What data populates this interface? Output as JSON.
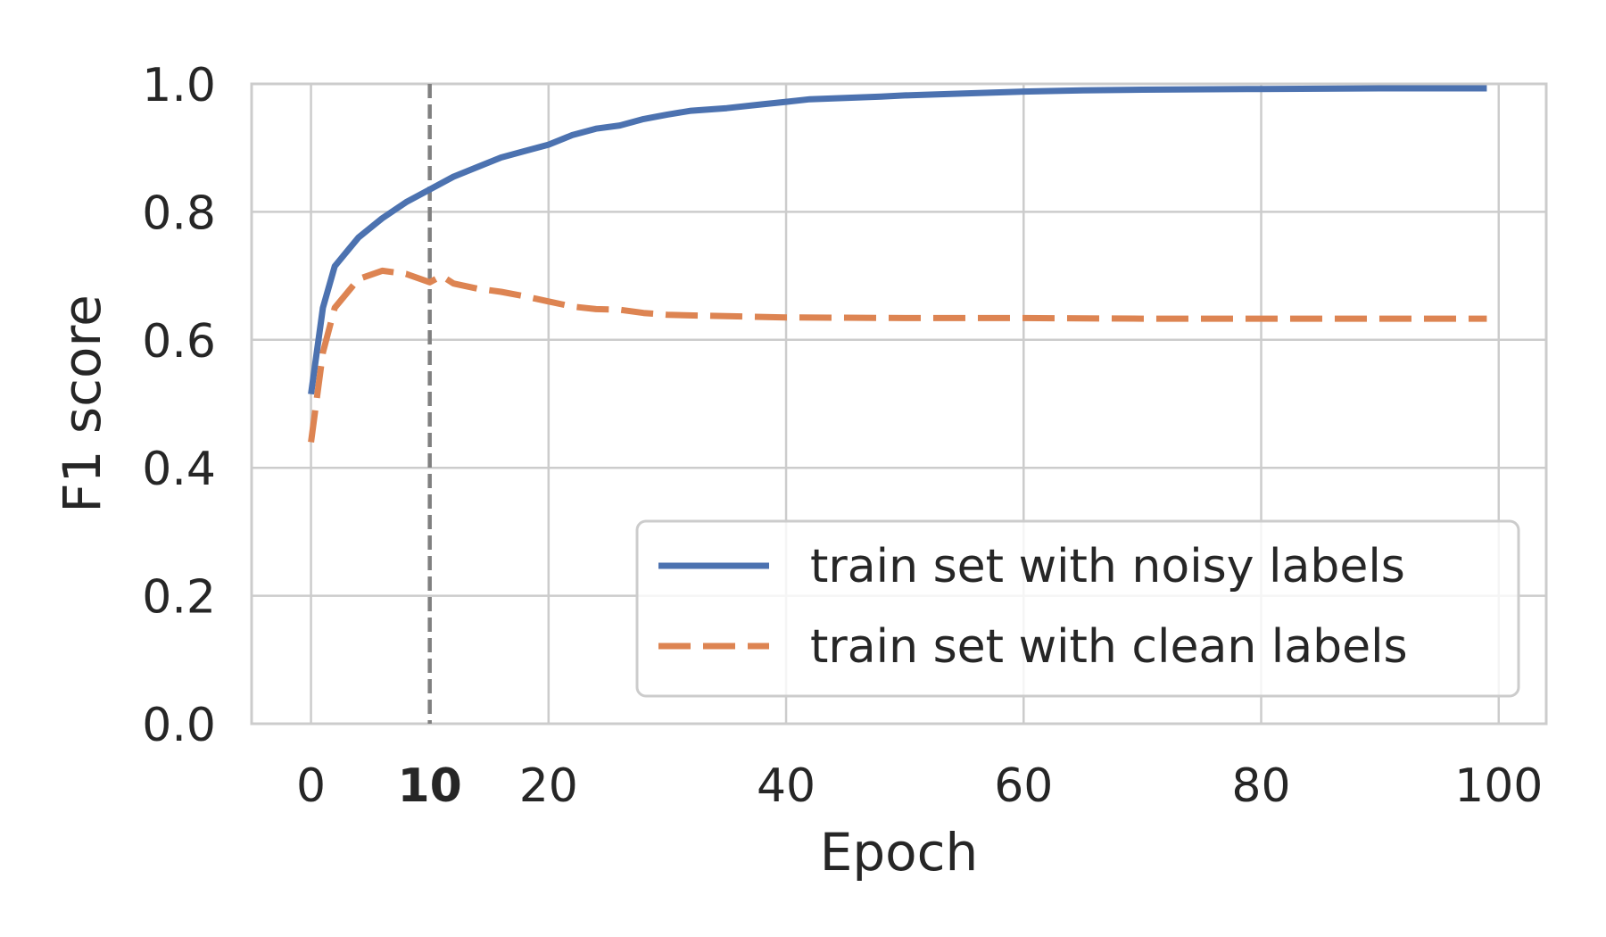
{
  "chart_data": {
    "type": "line",
    "xlabel": "Epoch",
    "ylabel": "F1 score",
    "xlim": [
      -5,
      104
    ],
    "ylim": [
      0,
      1
    ],
    "xticks": [
      0,
      20,
      40,
      60,
      80,
      100
    ],
    "xtick_labels": [
      "0",
      "20",
      "40",
      "60",
      "80",
      "100"
    ],
    "highlight_tick": {
      "value": 10,
      "label": "10"
    },
    "yticks": [
      0,
      0.2,
      0.4,
      0.6,
      0.8,
      1.0
    ],
    "ytick_labels": [
      "0.0",
      "0.2",
      "0.4",
      "0.6",
      "0.8",
      "1.0"
    ],
    "grid": true,
    "legend_position": "lower right",
    "vline": {
      "x": 10,
      "style": "dashed",
      "color": "#808080"
    },
    "series": [
      {
        "name": "train set with noisy labels",
        "color": "#4c72b0",
        "style": "solid",
        "x": [
          0,
          1,
          2,
          4,
          6,
          8,
          10,
          12,
          14,
          16,
          18,
          20,
          22,
          24,
          26,
          28,
          30,
          32,
          35,
          38,
          40,
          42,
          45,
          48,
          50,
          55,
          60,
          65,
          70,
          80,
          90,
          99
        ],
        "y": [
          0.515,
          0.65,
          0.715,
          0.76,
          0.79,
          0.815,
          0.835,
          0.855,
          0.87,
          0.885,
          0.895,
          0.905,
          0.92,
          0.93,
          0.935,
          0.945,
          0.952,
          0.958,
          0.962,
          0.968,
          0.972,
          0.976,
          0.978,
          0.98,
          0.982,
          0.985,
          0.988,
          0.99,
          0.991,
          0.992,
          0.993,
          0.993
        ]
      },
      {
        "name": "train set with clean labels",
        "color": "#dd8452",
        "style": "dashed",
        "x": [
          0,
          1,
          2,
          4,
          6,
          8,
          10,
          11,
          12,
          14,
          16,
          18,
          20,
          22,
          24,
          26,
          28,
          30,
          35,
          40,
          50,
          60,
          70,
          80,
          90,
          99
        ],
        "y": [
          0.44,
          0.58,
          0.65,
          0.695,
          0.708,
          0.703,
          0.69,
          0.7,
          0.688,
          0.68,
          0.675,
          0.668,
          0.66,
          0.652,
          0.648,
          0.647,
          0.642,
          0.639,
          0.637,
          0.635,
          0.634,
          0.634,
          0.633,
          0.633,
          0.633,
          0.633
        ]
      }
    ]
  }
}
